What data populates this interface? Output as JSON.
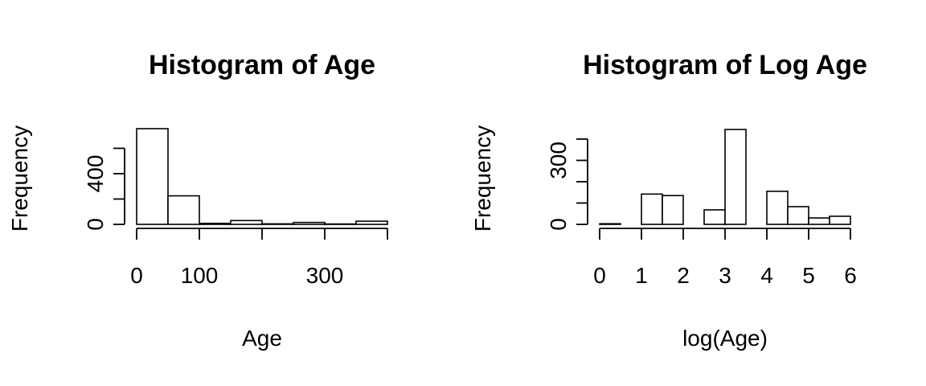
{
  "colors": {
    "bar_fill": "#ffffff",
    "stroke": "#000000",
    "background": "#ffffff"
  },
  "chart_data": [
    {
      "type": "bar",
      "subtype": "histogram",
      "title": "Histogram of Age",
      "xlabel": "Age",
      "ylabel": "Frequency",
      "bins": [
        {
          "start": 0,
          "end": 50,
          "count": 755
        },
        {
          "start": 50,
          "end": 100,
          "count": 225
        },
        {
          "start": 100,
          "end": 150,
          "count": 8
        },
        {
          "start": 150,
          "end": 200,
          "count": 30
        },
        {
          "start": 200,
          "end": 250,
          "count": 4
        },
        {
          "start": 250,
          "end": 300,
          "count": 15
        },
        {
          "start": 300,
          "end": 350,
          "count": 3
        },
        {
          "start": 350,
          "end": 400,
          "count": 25
        }
      ],
      "xlim": [
        0,
        400
      ],
      "x_ticks": [
        0,
        100,
        200,
        300,
        400
      ],
      "x_tick_labels": [
        "0",
        "100",
        "",
        "300",
        ""
      ],
      "y_ticks": [
        0,
        200,
        400,
        600
      ],
      "y_tick_labels": [
        "0",
        "",
        "400",
        ""
      ],
      "grid": false
    },
    {
      "type": "bar",
      "subtype": "histogram",
      "title": "Histogram of Log Age",
      "xlabel": "log(Age)",
      "ylabel": "Frequency",
      "bins": [
        {
          "start": 0,
          "end": 0.5,
          "count": 3
        },
        {
          "start": 0.5,
          "end": 1,
          "count": 0
        },
        {
          "start": 1,
          "end": 1.5,
          "count": 142
        },
        {
          "start": 1.5,
          "end": 2,
          "count": 135
        },
        {
          "start": 2,
          "end": 2.5,
          "count": 0
        },
        {
          "start": 2.5,
          "end": 3,
          "count": 68
        },
        {
          "start": 3,
          "end": 3.5,
          "count": 445
        },
        {
          "start": 3.5,
          "end": 4,
          "count": 0
        },
        {
          "start": 4,
          "end": 4.5,
          "count": 155
        },
        {
          "start": 4.5,
          "end": 5,
          "count": 83
        },
        {
          "start": 5,
          "end": 5.5,
          "count": 30
        },
        {
          "start": 5.5,
          "end": 6,
          "count": 38
        }
      ],
      "xlim": [
        0,
        6
      ],
      "x_ticks": [
        0,
        1,
        2,
        3,
        4,
        5,
        6
      ],
      "x_tick_labels": [
        "0",
        "1",
        "2",
        "3",
        "4",
        "5",
        "6"
      ],
      "y_ticks": [
        0,
        100,
        200,
        300,
        400
      ],
      "y_tick_labels": [
        "0",
        "",
        "",
        "300",
        ""
      ],
      "grid": false
    }
  ]
}
